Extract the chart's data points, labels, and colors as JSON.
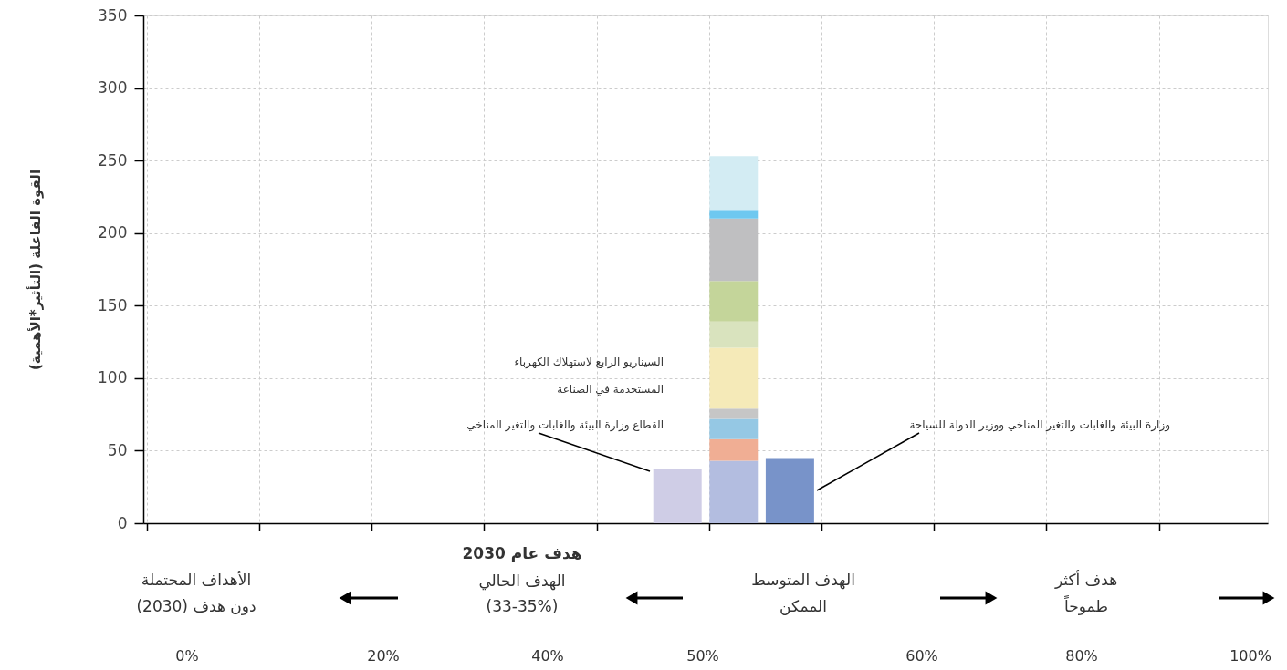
{
  "chart_data": {
    "type": "bar",
    "stacked": true,
    "ylabel": "القوة الفاعلة (التأثير*الأهمية)",
    "categories": [
      null,
      null,
      null,
      null,
      null,
      null,
      null,
      null,
      null,
      null,
      null,
      null,
      null,
      null,
      null,
      null,
      null,
      null,
      null,
      null
    ],
    "series": [
      {
        "color": "#cfcde6",
        "values": [
          null,
          null,
          null,
          null,
          null,
          null,
          null,
          null,
          null,
          37,
          null,
          null,
          null,
          null,
          null,
          null,
          null,
          null,
          null,
          null
        ]
      },
      {
        "color": "#7893c9",
        "values": [
          null,
          null,
          null,
          null,
          null,
          null,
          null,
          null,
          null,
          null,
          null,
          45,
          null,
          null,
          null,
          null,
          null,
          null,
          null,
          null
        ]
      },
      {
        "color": "#b3bde0",
        "values": [
          null,
          null,
          null,
          null,
          null,
          null,
          null,
          null,
          null,
          null,
          43,
          null,
          null,
          null,
          null,
          null,
          null,
          null,
          null,
          null
        ]
      },
      {
        "color": "#f0ae94",
        "values": [
          null,
          null,
          null,
          null,
          null,
          null,
          null,
          null,
          null,
          null,
          15,
          null,
          null,
          null,
          null,
          null,
          null,
          null,
          null,
          null
        ]
      },
      {
        "color": "#95c8e4",
        "values": [
          null,
          null,
          null,
          null,
          null,
          null,
          null,
          null,
          null,
          null,
          14,
          null,
          null,
          null,
          null,
          null,
          null,
          null,
          null,
          null
        ]
      },
      {
        "color": "#c6c6c6",
        "values": [
          null,
          null,
          null,
          null,
          null,
          null,
          null,
          null,
          null,
          null,
          7,
          null,
          null,
          null,
          null,
          null,
          null,
          null,
          null,
          null
        ]
      },
      {
        "color": "#f5eab8",
        "values": [
          null,
          null,
          null,
          null,
          null,
          null,
          null,
          null,
          null,
          null,
          42,
          null,
          null,
          null,
          null,
          null,
          null,
          null,
          null,
          null
        ]
      },
      {
        "color": "#d9e3be",
        "values": [
          null,
          null,
          null,
          null,
          null,
          null,
          null,
          null,
          null,
          null,
          18,
          null,
          null,
          null,
          null,
          null,
          null,
          null,
          null,
          null
        ]
      },
      {
        "color": "#c4d59a",
        "values": [
          null,
          null,
          null,
          null,
          null,
          null,
          null,
          null,
          null,
          null,
          28,
          null,
          null,
          null,
          null,
          null,
          null,
          null,
          null,
          null
        ]
      },
      {
        "color": "#bfbfc1",
        "values": [
          null,
          null,
          null,
          null,
          null,
          null,
          null,
          null,
          null,
          null,
          43,
          null,
          null,
          null,
          null,
          null,
          null,
          null,
          null,
          null
        ]
      },
      {
        "color": "#6ec8f0",
        "values": [
          null,
          null,
          null,
          null,
          null,
          null,
          null,
          null,
          null,
          null,
          6,
          null,
          null,
          null,
          null,
          null,
          null,
          null,
          null,
          null
        ]
      },
      {
        "color": "#d3ecf3",
        "values": [
          null,
          null,
          null,
          null,
          null,
          null,
          null,
          null,
          null,
          null,
          37,
          null,
          null,
          null,
          null,
          null,
          null,
          null,
          null,
          null
        ]
      }
    ],
    "ylim": [
      0,
      350
    ],
    "yticks": [
      0,
      50,
      100,
      150,
      200,
      250,
      300,
      350
    ],
    "grid": true,
    "tick_labels": "y",
    "annotations": [
      "السيناريو الرابع لاستهلاك الكهرباء",
      "المستخدمة في الصناعة",
      "القطاع وزارة البيئة والغابات والتغير المناخي",
      "وزارة البيئة والغابات والتغير المناخي ووزير الدولة للسياحة",
      "الأهداف المحتملة",
      "دون هدف (2030)",
      "هدف عام 2030",
      "الهدف الحالي",
      "(33-35%)",
      "الهدف المتوسط",
      "الممكن",
      "هدف أكثر",
      "طموحاً",
      "0%",
      "20%",
      "40%",
      "50%",
      "60%",
      "80%",
      "100%"
    ]
  }
}
